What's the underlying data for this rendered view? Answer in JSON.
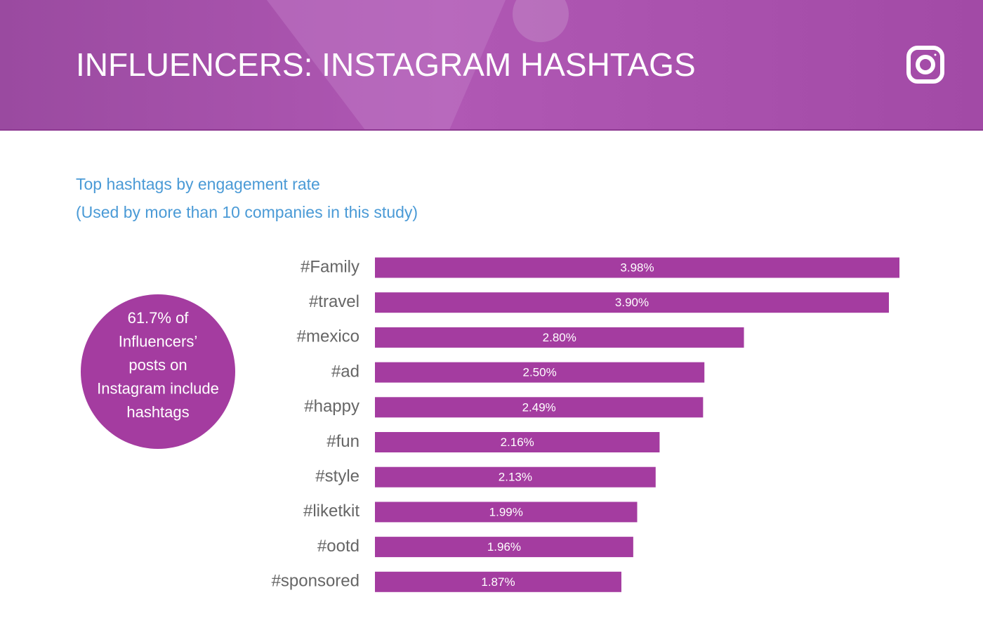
{
  "chart_data": {
    "type": "bar",
    "orientation": "horizontal",
    "title": "INFLUENCERS: INSTAGRAM HASHTAGS",
    "subtitle": [
      "Top hashtags by engagement rate",
      "(Used by more than 10 companies in this study)"
    ],
    "annotation": [
      "61.7% of",
      "Influencers’",
      "posts on",
      "Instagram include",
      "hashtags"
    ],
    "categories": [
      "#Family",
      "#travel",
      "#mexico",
      "#ad",
      "#happy",
      "#fun",
      "#style",
      "#liketkit",
      "#ootd",
      "#sponsored"
    ],
    "values": [
      3.98,
      3.9,
      2.8,
      2.5,
      2.49,
      2.16,
      2.13,
      1.99,
      1.96,
      1.87
    ],
    "value_labels": [
      "3.98%",
      "3.90%",
      "2.80%",
      "2.50%",
      "2.49%",
      "2.16%",
      "2.13%",
      "1.99%",
      "1.96%",
      "1.87%"
    ],
    "color": "#a43ca0"
  }
}
